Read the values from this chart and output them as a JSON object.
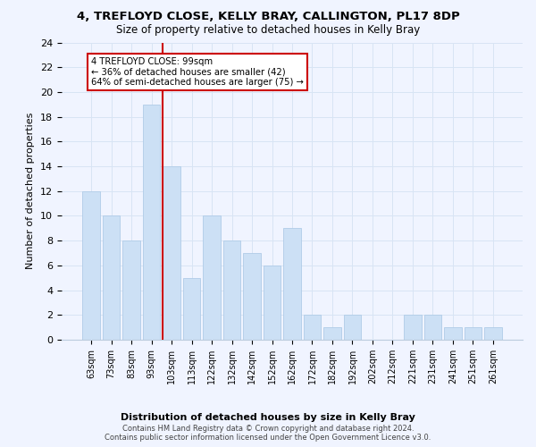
{
  "title": "4, TREFLOYD CLOSE, KELLY BRAY, CALLINGTON, PL17 8DP",
  "subtitle": "Size of property relative to detached houses in Kelly Bray",
  "xlabel": "Distribution of detached houses by size in Kelly Bray",
  "ylabel": "Number of detached properties",
  "categories": [
    "63sqm",
    "73sqm",
    "83sqm",
    "93sqm",
    "103sqm",
    "113sqm",
    "122sqm",
    "132sqm",
    "142sqm",
    "152sqm",
    "162sqm",
    "172sqm",
    "182sqm",
    "192sqm",
    "202sqm",
    "212sqm",
    "221sqm",
    "231sqm",
    "241sqm",
    "251sqm",
    "261sqm"
  ],
  "values": [
    12,
    10,
    8,
    19,
    14,
    5,
    10,
    8,
    7,
    6,
    9,
    2,
    1,
    2,
    0,
    0,
    2,
    2,
    1,
    1,
    1
  ],
  "bar_color": "#cce0f5",
  "bar_edgecolor": "#b0cce8",
  "vline_x_index": 4,
  "vline_color": "#cc0000",
  "annotation_title": "4 TREFLOYD CLOSE: 99sqm",
  "annotation_line1": "← 36% of detached houses are smaller (42)",
  "annotation_line2": "64% of semi-detached houses are larger (75) →",
  "annotation_box_color": "white",
  "annotation_box_edgecolor": "#cc0000",
  "ylim": [
    0,
    24
  ],
  "yticks": [
    0,
    2,
    4,
    6,
    8,
    10,
    12,
    14,
    16,
    18,
    20,
    22,
    24
  ],
  "footer1": "Contains HM Land Registry data © Crown copyright and database right 2024.",
  "footer2": "Contains public sector information licensed under the Open Government Licence v3.0.",
  "bg_color": "#f0f4ff",
  "grid_color": "#d8e4f4"
}
